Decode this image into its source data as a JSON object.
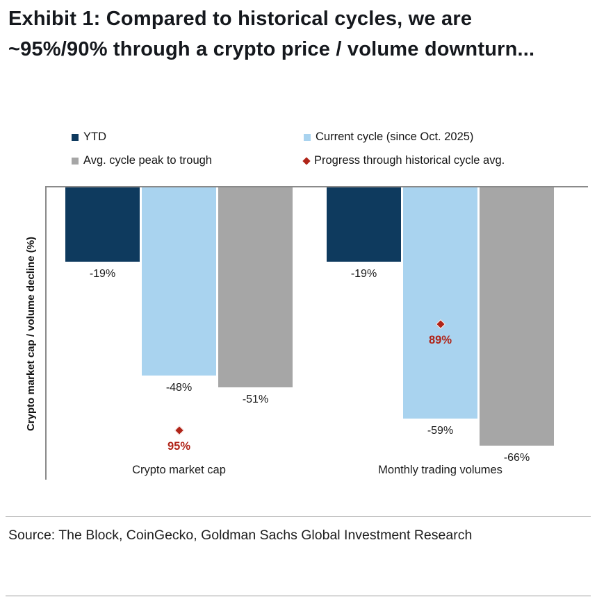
{
  "title": "Exhibit 1: Compared to historical cycles, we are ~95%/90% through a crypto price / volume downturn...",
  "legend": {
    "items": [
      {
        "label": "YTD",
        "swatch": "square",
        "color": "#0e3a5e"
      },
      {
        "label": "Current cycle (since Oct. 2025)",
        "swatch": "square",
        "color": "#a9d3ef"
      },
      {
        "label": "Avg. cycle peak to trough",
        "swatch": "square",
        "color": "#a6a6a6"
      },
      {
        "label": "Progress through historical cycle avg.",
        "swatch": "diamond",
        "color": "#b02418"
      }
    ]
  },
  "source": "Source: The Block, CoinGecko, Goldman Sachs Global Investment Research",
  "chart_data": {
    "type": "bar",
    "title": "Exhibit 1: Compared to historical cycles, we are ~95%/90% through a crypto price / volume downturn...",
    "ylabel": "Crypto market cap / volume decline (%)",
    "xlabel": "",
    "categories": [
      "Crypto market cap",
      "Monthly trading volumes"
    ],
    "series": [
      {
        "name": "YTD",
        "color": "#0e3a5e",
        "values": [
          -19,
          -19
        ]
      },
      {
        "name": "Current cycle (since Oct. 2025)",
        "color": "#a9d3ef",
        "values": [
          -48,
          -59
        ]
      },
      {
        "name": "Avg. cycle peak to trough",
        "color": "#a6a6a6",
        "values": [
          -51,
          -66
        ]
      }
    ],
    "markers": {
      "name": "Progress through historical cycle avg.",
      "color": "#b02418",
      "values": [
        "95%",
        "89%"
      ],
      "plotted_at_decline": [
        -62,
        -35
      ]
    },
    "ylim": [
      0,
      -75
    ],
    "grid": false,
    "legend_position": "top",
    "bars_grow": "downward_from_zero_line"
  }
}
